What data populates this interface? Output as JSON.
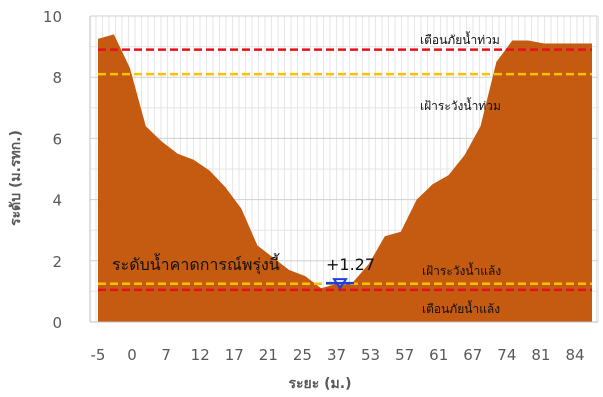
{
  "chart_data": {
    "type": "area",
    "xlabel": "ระยะ (ม.)",
    "ylabel": "ระดับ (ม.รทก.)",
    "ylim": [
      0,
      10
    ],
    "yticks": [
      "0",
      "2",
      "4",
      "6",
      "8",
      "10"
    ],
    "grid": true,
    "x_tick_labels": [
      "-5",
      "0",
      "7",
      "12",
      "17",
      "21",
      "25",
      "37",
      "53",
      "57",
      "61",
      "67",
      "74",
      "81",
      "84"
    ],
    "profile": {
      "distance": [
        "-5",
        "-3",
        "0",
        "3",
        "7",
        "10",
        "12",
        "15",
        "17",
        "19",
        "21",
        "23",
        "25",
        "30",
        "37",
        "45",
        "53",
        "55",
        "57",
        "59",
        "61",
        "63",
        "65",
        "67",
        "70",
        "74",
        "77",
        "81",
        "82",
        "84",
        "85",
        "86"
      ],
      "level": [
        9.25,
        9.4,
        8.3,
        6.4,
        5.9,
        5.5,
        5.3,
        4.95,
        4.4,
        3.7,
        2.5,
        2.1,
        1.7,
        1.5,
        1.1,
        1.25,
        1.3,
        1.9,
        2.8,
        2.95,
        4.0,
        4.5,
        4.8,
        5.45,
        6.4,
        8.5,
        9.2,
        9.2,
        9.1,
        9.1,
        9.1,
        9.1
      ],
      "color": "#C55A11"
    },
    "reference_lines": [
      {
        "label": "เตือนภัยน้ำท่วม",
        "value": 8.9,
        "color": "#E8101E"
      },
      {
        "label": "เฝ้าระวังน้ำท่วม",
        "value": 8.1,
        "color": "#FFC000"
      },
      {
        "label": "เฝ้าระวังน้ำแล้ง",
        "value": 1.25,
        "color": "#FFC000"
      },
      {
        "label": "เตือนภัยน้ำแล้ง",
        "value": 1.05,
        "color": "#E8101E"
      }
    ],
    "forecast": {
      "label": "ระดับน้ำคาดการณ์พรุ่งนี้",
      "value_text": "+1.27",
      "value": 1.27,
      "color": "#1F3FE0"
    }
  }
}
